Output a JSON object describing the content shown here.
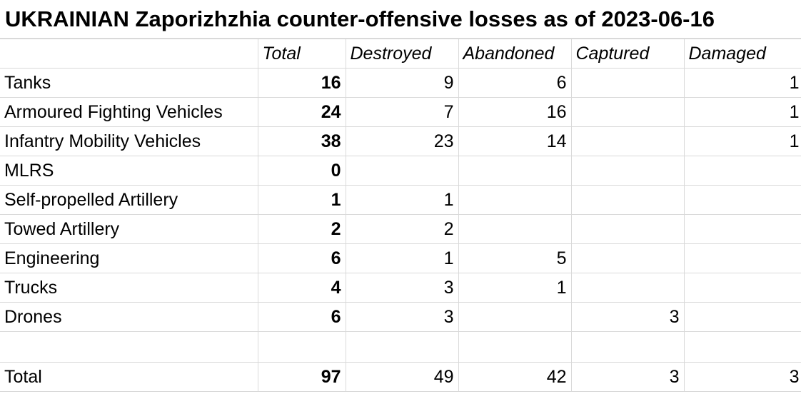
{
  "title": "UKRAINIAN Zaporizhzhia counter-offensive losses as of 2023-06-16",
  "headers": [
    "",
    "Total",
    "Destroyed",
    "Abandoned",
    "Captured",
    "Damaged"
  ],
  "rows": [
    {
      "label": "Tanks",
      "total": "16",
      "destroyed": "9",
      "abandoned": "6",
      "captured": "",
      "damaged": "1"
    },
    {
      "label": "Armoured Fighting Vehicles",
      "total": "24",
      "destroyed": "7",
      "abandoned": "16",
      "captured": "",
      "damaged": "1"
    },
    {
      "label": "Infantry Mobility Vehicles",
      "total": "38",
      "destroyed": "23",
      "abandoned": "14",
      "captured": "",
      "damaged": "1"
    },
    {
      "label": "MLRS",
      "total": "0",
      "destroyed": "",
      "abandoned": "",
      "captured": "",
      "damaged": ""
    },
    {
      "label": "Self-propelled Artillery",
      "total": "1",
      "destroyed": "1",
      "abandoned": "",
      "captured": "",
      "damaged": ""
    },
    {
      "label": "Towed Artillery",
      "total": "2",
      "destroyed": "2",
      "abandoned": "",
      "captured": "",
      "damaged": ""
    },
    {
      "label": "Engineering",
      "total": "6",
      "destroyed": "1",
      "abandoned": "5",
      "captured": "",
      "damaged": ""
    },
    {
      "label": "Trucks",
      "total": "4",
      "destroyed": "3",
      "abandoned": "1",
      "captured": "",
      "damaged": ""
    },
    {
      "label": "Drones",
      "total": "6",
      "destroyed": "3",
      "abandoned": "",
      "captured": "3",
      "damaged": ""
    }
  ],
  "totals": {
    "label": "Total",
    "total": "97",
    "destroyed": "49",
    "abandoned": "42",
    "captured": "3",
    "damaged": "3"
  }
}
